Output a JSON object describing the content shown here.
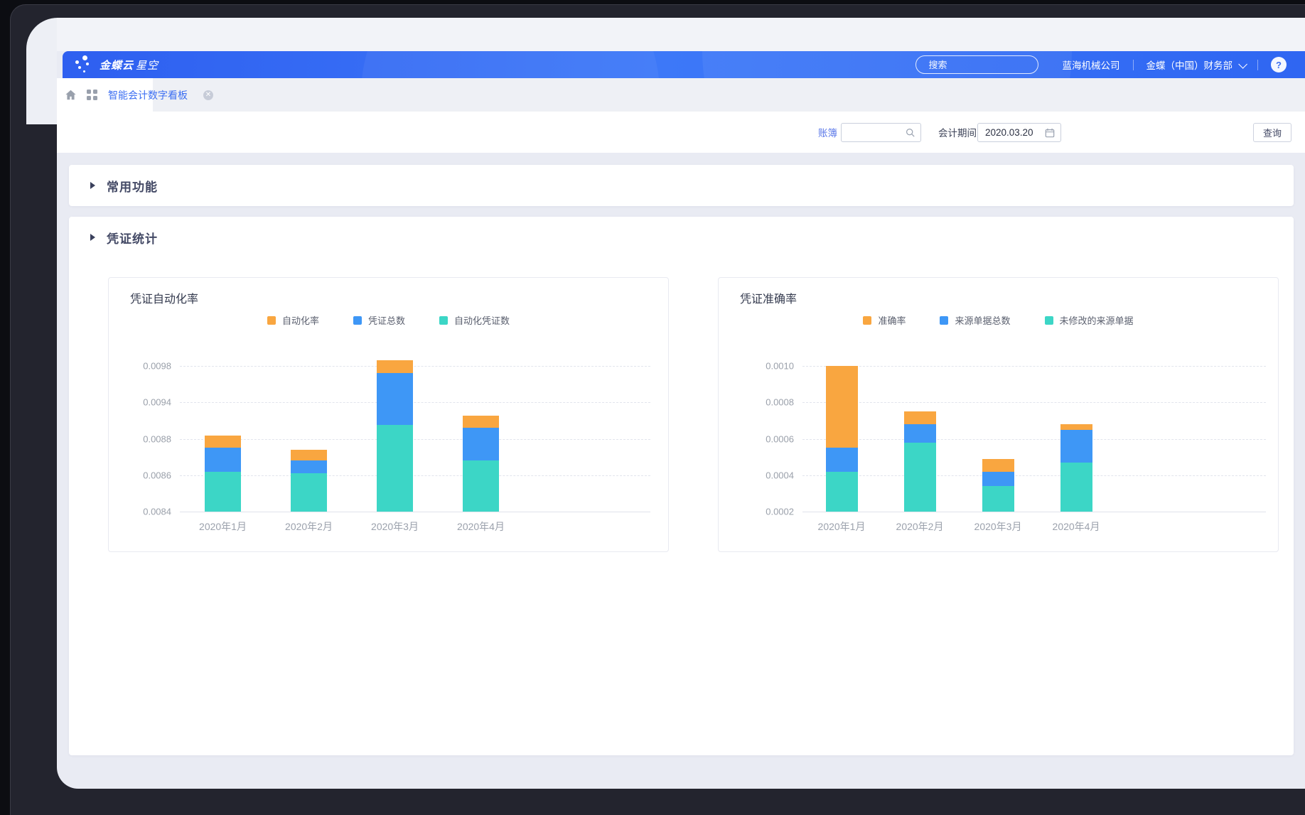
{
  "header": {
    "logo_bold": "金蝶云",
    "logo_light": "星空",
    "search_placeholder": "搜索",
    "company": "蓝海机械公司",
    "department": "金蝶（中国）财务部",
    "help_glyph": "?"
  },
  "tabbar": {
    "tab_label": "智能会计数字看板",
    "close_glyph": "✕"
  },
  "filters": {
    "book_label": "账簿",
    "book_value": "",
    "period_label": "会计期间",
    "period_value": "2020.03.20",
    "query_label": "查询"
  },
  "sections": {
    "common_title": "常用功能",
    "stats_title": "凭证统计"
  },
  "colors": {
    "accent_blue": "#3d6ff2",
    "orange": "#F9A640",
    "blue": "#3E97F6",
    "teal": "#3CD6C6"
  },
  "chart_data": [
    {
      "type": "bar",
      "stacked": true,
      "title": "凭证自动化率",
      "categories": [
        "2020年1月",
        "2020年2月",
        "2020年3月",
        "2020年4月"
      ],
      "y_ticks": [
        0.0084,
        0.0086,
        0.0088,
        0.0094,
        0.0098
      ],
      "y_tick_labels": [
        "0.0084",
        "0.0086",
        "0.0088",
        "0.0094",
        "0.0098"
      ],
      "ylim": [
        0.0084,
        0.0098
      ],
      "grid": "dashed-horizontal",
      "legend_position": "top-center",
      "value_note": "series values are cumulative stack-top levels read from the y axis",
      "series": [
        {
          "name": "自动化率",
          "color": "#F9A640",
          "stack_top": [
            0.00885,
            0.00874,
            0.00986,
            0.00918
          ]
        },
        {
          "name": "凭证总数",
          "color": "#3E97F6",
          "stack_top": [
            0.00875,
            0.00868,
            0.00972,
            0.00898
          ]
        },
        {
          "name": "自动化凭证数",
          "color": "#3CD6C6",
          "stack_top": [
            0.00862,
            0.00861,
            0.00903,
            0.00868
          ]
        }
      ]
    },
    {
      "type": "bar",
      "stacked": true,
      "title": "凭证准确率",
      "categories": [
        "2020年1月",
        "2020年2月",
        "2020年3月",
        "2020年4月"
      ],
      "y_ticks": [
        0.0002,
        0.0004,
        0.0006,
        0.0008,
        0.001
      ],
      "y_tick_labels": [
        "0.0002",
        "0.0004",
        "0.0006",
        "0.0008",
        "0.0010"
      ],
      "ylim": [
        0.0002,
        0.001
      ],
      "grid": "dashed-horizontal",
      "legend_position": "top-center",
      "value_note": "series values are cumulative stack-top levels read from the y axis",
      "series": [
        {
          "name": "准确率",
          "color": "#F9A640",
          "stack_top": [
            0.001,
            0.00075,
            0.00049,
            0.00068
          ]
        },
        {
          "name": "来源单据总数",
          "color": "#3E97F6",
          "stack_top": [
            0.00055,
            0.00068,
            0.00042,
            0.00065
          ]
        },
        {
          "name": "未修改的来源单据",
          "color": "#3CD6C6",
          "stack_top": [
            0.00042,
            0.00058,
            0.00034,
            0.00047
          ]
        }
      ]
    }
  ]
}
